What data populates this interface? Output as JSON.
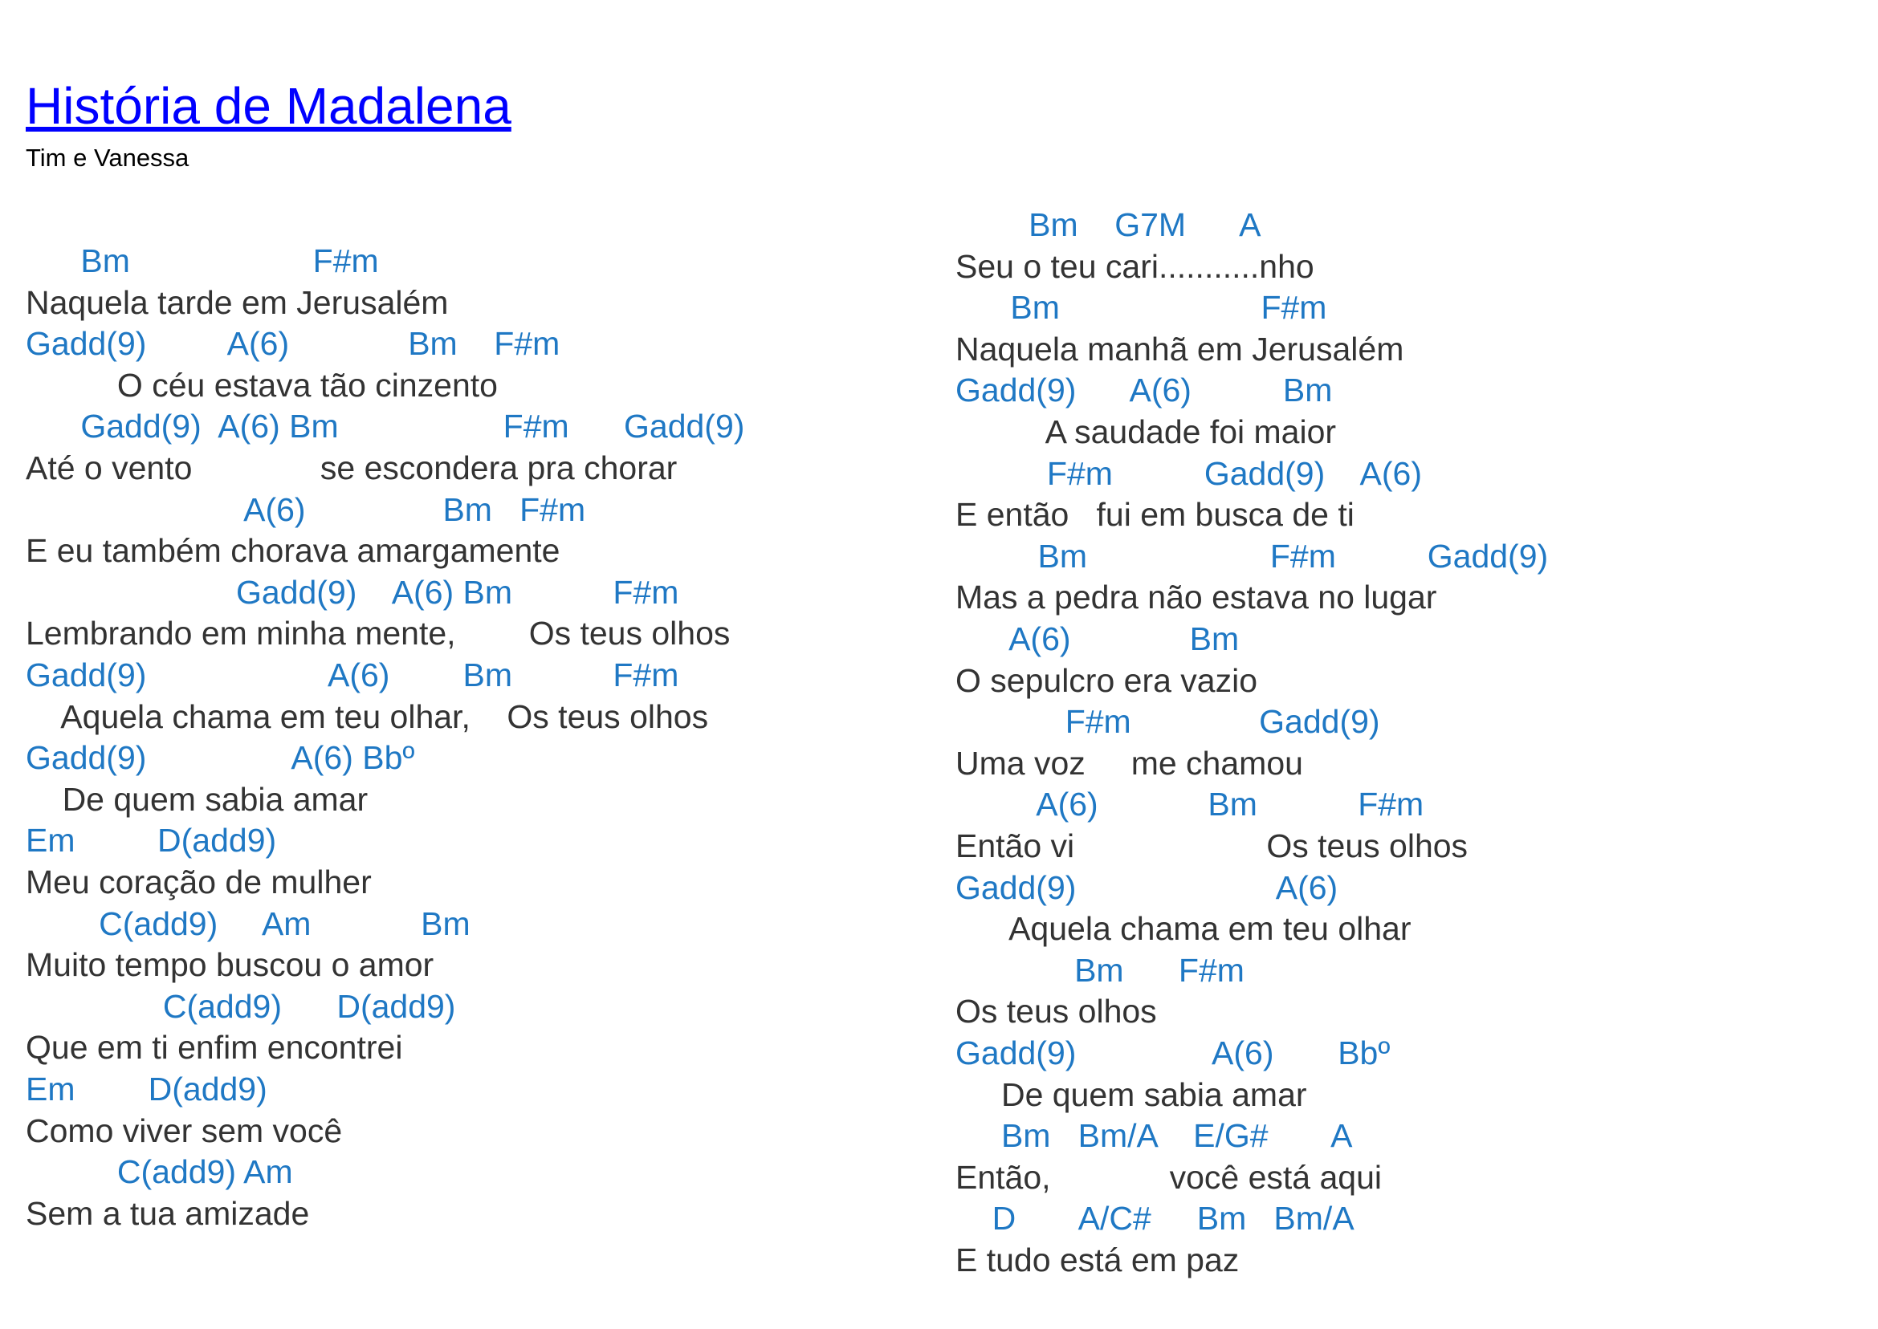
{
  "song": {
    "title": "História de Madalena",
    "artist": "Tim e Vanessa"
  },
  "colors": {
    "title": "#0000ff",
    "chord": "#1f78c4",
    "lyric": "#333333"
  },
  "columns": [
    {
      "lines": [
        {
          "type": "chord",
          "text": "      Bm                    F#m"
        },
        {
          "type": "lyric",
          "text": "Naquela tarde em Jerusalém"
        },
        {
          "type": "chord",
          "text": "Gadd(9)         A(6)             Bm    F#m"
        },
        {
          "type": "lyric",
          "text": "          O céu estava tão cinzento"
        },
        {
          "type": "chord",
          "text": "      Gadd(9)  A(6) Bm                  F#m      Gadd(9)"
        },
        {
          "type": "lyric",
          "text": "Até o vento              se escondera pra chorar"
        },
        {
          "type": "chord",
          "text": "                        A(6)               Bm   F#m"
        },
        {
          "type": "lyric",
          "text": "E eu também chorava amargamente"
        },
        {
          "type": "chord",
          "text": "                       Gadd(9)    A(6) Bm           F#m"
        },
        {
          "type": "lyric",
          "text": "Lembrando em minha mente,        Os teus olhos"
        },
        {
          "type": "chord",
          "text": "Gadd(9)                    A(6)        Bm           F#m"
        },
        {
          "type": "lyric",
          "text": "    Aquela chama em teu olhar,    Os teus olhos"
        },
        {
          "type": "chord",
          "text": "Gadd(9)                A(6) Bbº"
        },
        {
          "type": "lyric",
          "text": "    De quem sabia amar"
        },
        {
          "type": "chord",
          "text": "Em         D(add9)"
        },
        {
          "type": "lyric",
          "text": "Meu coração de mulher"
        },
        {
          "type": "chord",
          "text": "        C(add9)     Am            Bm"
        },
        {
          "type": "lyric",
          "text": "Muito tempo buscou o amor"
        },
        {
          "type": "chord",
          "text": "               C(add9)      D(add9)"
        },
        {
          "type": "lyric",
          "text": "Que em ti enfim encontrei"
        },
        {
          "type": "chord",
          "text": "Em        D(add9)"
        },
        {
          "type": "lyric",
          "text": "Como viver sem você"
        },
        {
          "type": "chord",
          "text": "          C(add9) Am"
        },
        {
          "type": "lyric",
          "text": "Sem a tua amizade"
        }
      ]
    },
    {
      "lines": [
        {
          "type": "chord",
          "text": "        Bm    G7M      A"
        },
        {
          "type": "lyric",
          "text": "Seu o teu cari...........nho"
        },
        {
          "type": "chord",
          "text": "      Bm                      F#m"
        },
        {
          "type": "lyric",
          "text": "Naquela manhã em Jerusalém"
        },
        {
          "type": "chord",
          "text": "Gadd(9)      A(6)          Bm"
        },
        {
          "type": "lyric",
          "text": "          A saudade foi maior"
        },
        {
          "type": "chord",
          "text": "          F#m          Gadd(9)    A(6)"
        },
        {
          "type": "lyric",
          "text": "E então   fui em busca de ti"
        },
        {
          "type": "chord",
          "text": "         Bm                    F#m          Gadd(9)"
        },
        {
          "type": "lyric",
          "text": "Mas a pedra não estava no lugar"
        },
        {
          "type": "chord",
          "text": "      A(6)             Bm"
        },
        {
          "type": "lyric",
          "text": "O sepulcro era vazio"
        },
        {
          "type": "chord",
          "text": "            F#m              Gadd(9)"
        },
        {
          "type": "lyric",
          "text": "Uma voz     me chamou"
        },
        {
          "type": "chord",
          "text": "         A(6)            Bm           F#m"
        },
        {
          "type": "lyric",
          "text": "Então vi                     Os teus olhos"
        },
        {
          "type": "chord",
          "text": "Gadd(9)                      A(6)"
        },
        {
          "type": "lyric",
          "text": "      Aquela chama em teu olhar"
        },
        {
          "type": "chord",
          "text": "             Bm      F#m"
        },
        {
          "type": "lyric",
          "text": "Os teus olhos"
        },
        {
          "type": "chord",
          "text": "Gadd(9)               A(6)       Bbº"
        },
        {
          "type": "lyric",
          "text": "     De quem sabia amar"
        },
        {
          "type": "chord",
          "text": "     Bm   Bm/A    E/G#       A"
        },
        {
          "type": "lyric",
          "text": "Então,             você está aqui"
        },
        {
          "type": "chord",
          "text": "    D       A/C#     Bm   Bm/A"
        },
        {
          "type": "lyric",
          "text": "E tudo está em paz"
        }
      ]
    }
  ]
}
